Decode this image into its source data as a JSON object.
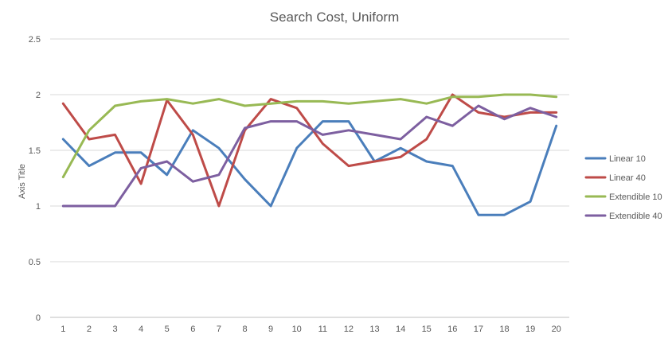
{
  "chart_data": {
    "type": "line",
    "title": "Search Cost, Uniform",
    "xlabel": "",
    "ylabel": "Axis Title",
    "ylim": [
      0,
      2.5
    ],
    "yticks": [
      "0",
      "0.5",
      "1",
      "1.5",
      "2",
      "2.5"
    ],
    "grid": "horizontal",
    "legend_position": "right",
    "categories": [
      "1",
      "2",
      "3",
      "4",
      "5",
      "6",
      "7",
      "8",
      "9",
      "10",
      "11",
      "12",
      "13",
      "14",
      "15",
      "16",
      "17",
      "18",
      "19",
      "20"
    ],
    "series": [
      {
        "name": "Linear 10",
        "color": "#4a7ebb",
        "values": [
          1.6,
          1.36,
          1.48,
          1.48,
          1.28,
          1.68,
          1.52,
          1.24,
          1.0,
          1.52,
          1.76,
          1.76,
          1.4,
          1.52,
          1.4,
          1.36,
          0.92,
          0.92,
          1.04,
          1.72
        ]
      },
      {
        "name": "Linear 40",
        "color": "#be4b48",
        "values": [
          1.92,
          1.6,
          1.64,
          1.2,
          1.95,
          1.64,
          1.0,
          1.68,
          1.96,
          1.88,
          1.56,
          1.36,
          1.4,
          1.44,
          1.6,
          2.0,
          1.84,
          1.8,
          1.84,
          1.84
        ]
      },
      {
        "name": "Extendible 10",
        "color": "#98b954",
        "values": [
          1.26,
          1.68,
          1.9,
          1.94,
          1.96,
          1.92,
          1.96,
          1.9,
          1.92,
          1.94,
          1.94,
          1.92,
          1.94,
          1.96,
          1.92,
          1.98,
          1.98,
          2.0,
          2.0,
          1.98
        ]
      },
      {
        "name": "Extendible 40",
        "color": "#7d5fa0",
        "values": [
          1.0,
          1.0,
          1.0,
          1.34,
          1.4,
          1.22,
          1.28,
          1.7,
          1.76,
          1.76,
          1.64,
          1.68,
          1.64,
          1.6,
          1.8,
          1.72,
          1.9,
          1.78,
          1.88,
          1.8
        ]
      }
    ]
  }
}
